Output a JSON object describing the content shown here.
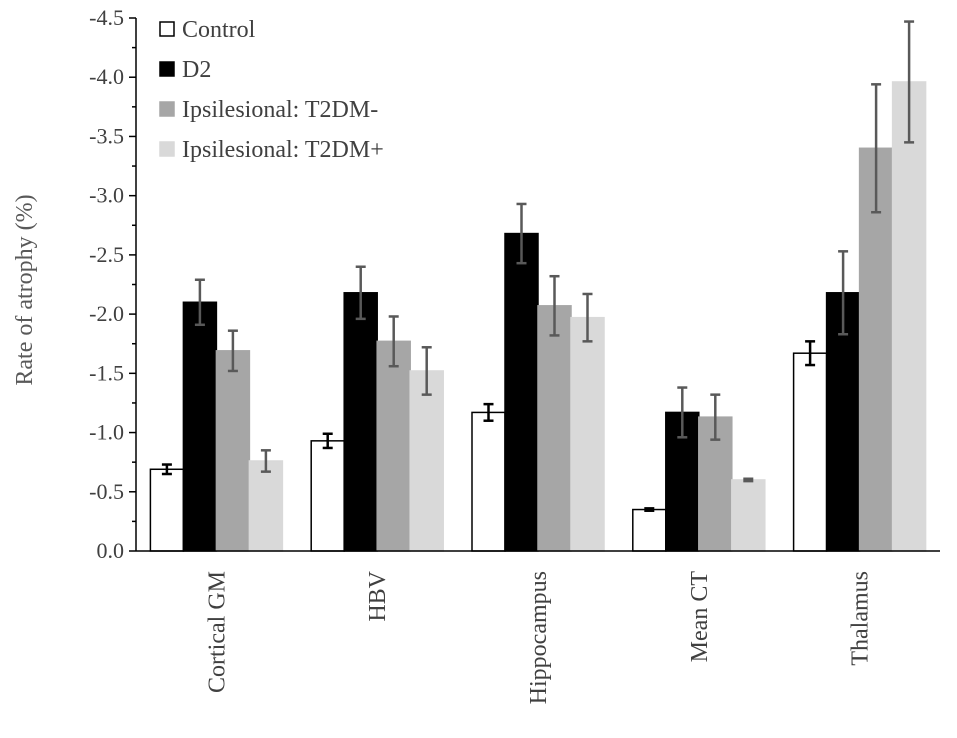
{
  "chart_data": {
    "type": "bar",
    "ylabel": "Rate of atrophy (%)",
    "xlabel": "",
    "ylim": [
      0,
      -4.5
    ],
    "y_ticks": [
      "0.0",
      "-0.5",
      "-1.0",
      "-1.5",
      "-2.0",
      "-2.5",
      "-3.0",
      "-3.5",
      "-4.0",
      "-4.5"
    ],
    "y_tick_values": [
      0,
      -0.5,
      -1.0,
      -1.5,
      -2.0,
      -2.5,
      -3.0,
      -3.5,
      -4.0,
      -4.5
    ],
    "categories": [
      "Cortical GM",
      "HBV",
      "Hippocampus",
      "Mean CT",
      "Thalamus"
    ],
    "series": [
      {
        "name": "Control",
        "fill": "#ffffff",
        "stroke": "#000000",
        "error_color": "#000000",
        "values": [
          -0.69,
          -0.93,
          -1.17,
          -0.35,
          -1.67
        ],
        "errors": [
          0.04,
          0.06,
          0.07,
          0.01,
          0.1
        ]
      },
      {
        "name": "D2",
        "fill": "#000000",
        "stroke": "#000000",
        "error_color": "#595959",
        "values": [
          -2.1,
          -2.18,
          -2.68,
          -1.17,
          -2.18
        ],
        "errors": [
          0.19,
          0.22,
          0.25,
          0.21,
          0.35
        ]
      },
      {
        "name": "Ipsilesional: T2DM-",
        "fill": "#a6a6a6",
        "stroke": "#a6a6a6",
        "error_color": "#595959",
        "values": [
          -1.69,
          -1.77,
          -2.07,
          -1.13,
          -3.4
        ],
        "errors": [
          0.17,
          0.21,
          0.25,
          0.19,
          0.54
        ]
      },
      {
        "name": "Ipsilesional: T2DM+",
        "fill": "#d9d9d9",
        "stroke": "#d9d9d9",
        "error_color": "#595959",
        "values": [
          -0.76,
          -1.52,
          -1.97,
          -0.6,
          -3.96
        ],
        "errors": [
          0.09,
          0.2,
          0.2,
          0.01,
          0.51
        ]
      }
    ],
    "legend_position": "top-left",
    "grid": false
  }
}
